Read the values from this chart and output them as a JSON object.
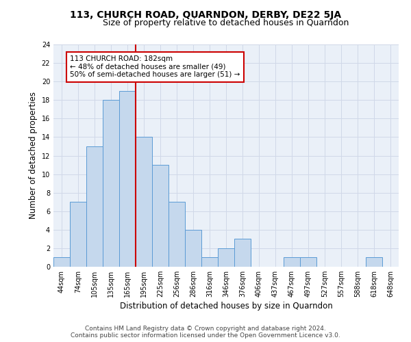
{
  "title": "113, CHURCH ROAD, QUARNDON, DERBY, DE22 5JA",
  "subtitle": "Size of property relative to detached houses in Quarndon",
  "xlabel": "Distribution of detached houses by size in Quarndon",
  "ylabel": "Number of detached properties",
  "categories": [
    "44sqm",
    "74sqm",
    "105sqm",
    "135sqm",
    "165sqm",
    "195sqm",
    "225sqm",
    "256sqm",
    "286sqm",
    "316sqm",
    "346sqm",
    "376sqm",
    "406sqm",
    "437sqm",
    "467sqm",
    "497sqm",
    "527sqm",
    "557sqm",
    "588sqm",
    "618sqm",
    "648sqm"
  ],
  "values": [
    1,
    7,
    13,
    18,
    19,
    14,
    11,
    7,
    4,
    1,
    2,
    3,
    0,
    0,
    1,
    1,
    0,
    0,
    0,
    1,
    0
  ],
  "bar_color": "#c5d8ed",
  "bar_edge_color": "#5b9bd5",
  "annotation_text": "113 CHURCH ROAD: 182sqm\n← 48% of detached houses are smaller (49)\n50% of semi-detached houses are larger (51) →",
  "annotation_box_color": "#ffffff",
  "annotation_box_edge_color": "#cc0000",
  "vline_color": "#cc0000",
  "vline_x": 4.5,
  "ylim": [
    0,
    24
  ],
  "yticks": [
    0,
    2,
    4,
    6,
    8,
    10,
    12,
    14,
    16,
    18,
    20,
    22,
    24
  ],
  "grid_color": "#d0d8e8",
  "bg_color": "#eaf0f8",
  "footer": "Contains HM Land Registry data © Crown copyright and database right 2024.\nContains public sector information licensed under the Open Government Licence v3.0.",
  "title_fontsize": 10,
  "subtitle_fontsize": 9,
  "xlabel_fontsize": 8.5,
  "ylabel_fontsize": 8.5,
  "tick_fontsize": 7,
  "annotation_fontsize": 7.5,
  "footer_fontsize": 6.5
}
